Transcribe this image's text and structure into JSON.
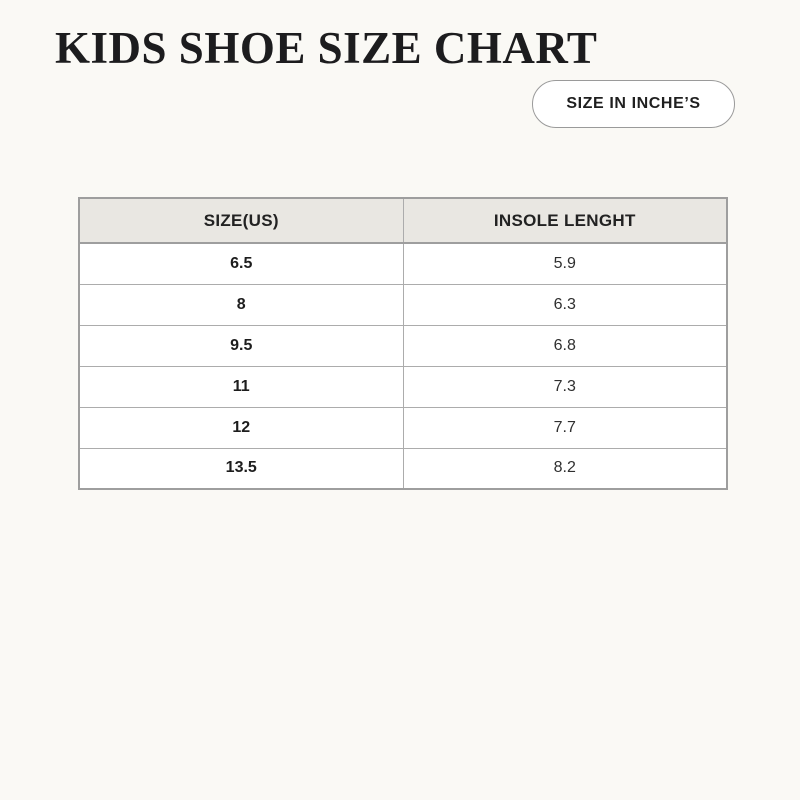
{
  "header": {
    "title": "KIDS SHOE SIZE CHART",
    "unit_button_label": "SIZE IN INCHE’S"
  },
  "chart_data": {
    "type": "table",
    "title": "KIDS SHOE SIZE CHART",
    "unit_note": "SIZE IN INCHE’S",
    "columns": [
      "SIZE(US)",
      "INSOLE LENGHT"
    ],
    "rows": [
      [
        "6.5",
        "5.9"
      ],
      [
        "8",
        "6.3"
      ],
      [
        "9.5",
        "6.8"
      ],
      [
        "11",
        "7.3"
      ],
      [
        "12",
        "7.7"
      ],
      [
        "13.5",
        "8.2"
      ]
    ]
  },
  "colors": {
    "page_background": "#FAF9F5",
    "table_header_background": "#E9E7E2",
    "cell_background": "#FFFFFF",
    "border": "#A9A9A9",
    "text": "#1E1E1E"
  }
}
